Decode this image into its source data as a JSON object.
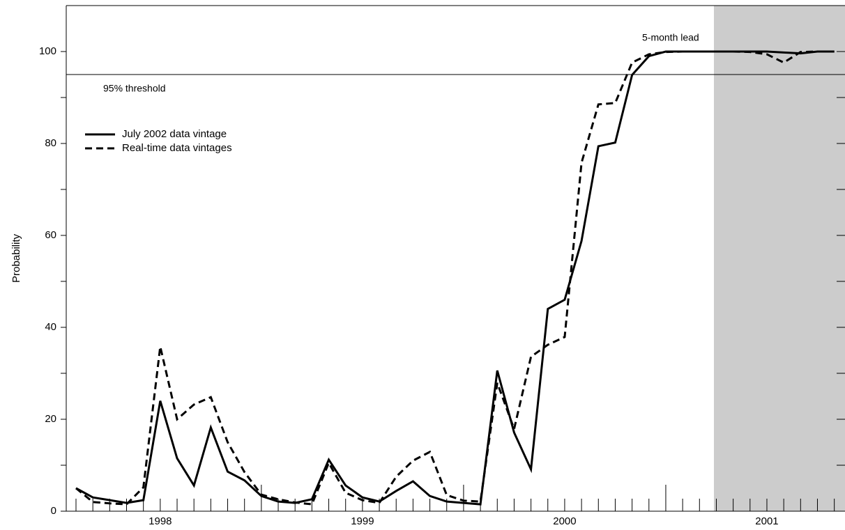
{
  "chart_data": {
    "type": "line",
    "y_label": "Probability",
    "categories": [
      null,
      null,
      null,
      null,
      null,
      "1998",
      null,
      null,
      null,
      null,
      null,
      null,
      null,
      null,
      null,
      null,
      null,
      "1999",
      null,
      null,
      null,
      null,
      null,
      null,
      null,
      null,
      null,
      null,
      null,
      "2000",
      null,
      null,
      null,
      null,
      null,
      null,
      null,
      null,
      null,
      null,
      null,
      "2001",
      null,
      null,
      null,
      null
    ],
    "series": [
      {
        "name": "July 2002 data vintage",
        "color": "#000000",
        "dash": "solid",
        "values": [
          5,
          3,
          2.4,
          1.8,
          2.4,
          24,
          11.5,
          5.6,
          18.2,
          8.6,
          6.7,
          3.3,
          2.1,
          1.8,
          2.6,
          11.2,
          5.6,
          3,
          2.1,
          4.4,
          6.5,
          3.3,
          2.1,
          1.8,
          1.5,
          30.6,
          17.1,
          9.1,
          44,
          46,
          58.8,
          79.4,
          80.2,
          94.9,
          99,
          100,
          100,
          100,
          100,
          100,
          100,
          100,
          99.8,
          99.6,
          100,
          100
        ]
      },
      {
        "name": "Real-time data vintages",
        "color": "#000000",
        "dash": "dashed",
        "values": [
          5,
          2,
          1.7,
          1.5,
          5.2,
          35.8,
          20,
          23.2,
          24.8,
          15,
          8.5,
          3.6,
          2.6,
          1.9,
          1.5,
          10.5,
          4,
          2.4,
          1.8,
          7.5,
          11,
          12.9,
          3.5,
          2.3,
          2.1,
          27.9,
          17.9,
          33.6,
          36.2,
          37.9,
          75.8,
          88.5,
          88.8,
          97.6,
          99.4,
          99.9,
          100,
          100,
          100,
          100,
          99.9,
          99.4,
          97.6,
          99.9,
          100,
          100
        ]
      }
    ],
    "threshold": 95,
    "annotations": [
      "95% threshold",
      "5-month lead"
    ],
    "ylim": [
      0,
      110
    ],
    "yticks": [
      0,
      20,
      40,
      60,
      80,
      100
    ],
    "yticks_minor": [
      10,
      30,
      50,
      70,
      90
    ],
    "grid": false
  }
}
